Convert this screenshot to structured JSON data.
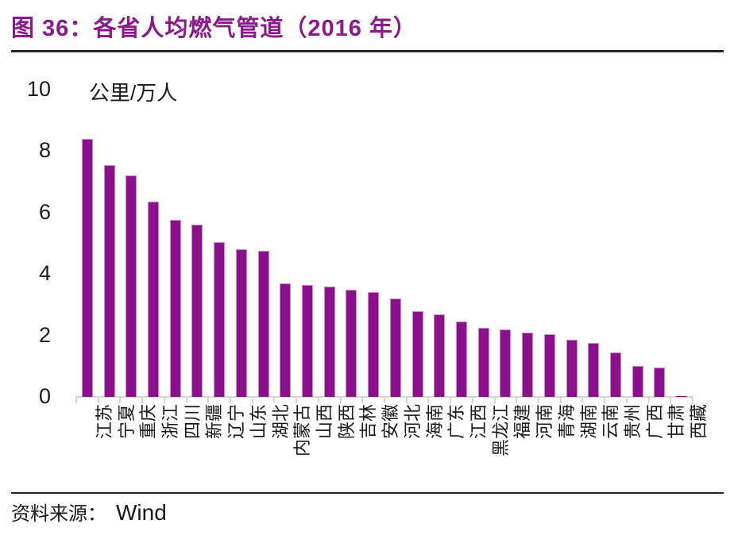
{
  "title": "图 36：各省人均燃气管道（2016 年）",
  "source_label": "资料来源：",
  "source_value": "Wind",
  "colors": {
    "bar_fill": "#8B108B",
    "bar_edge": "#D387CB",
    "title_text": "#8D188D",
    "axis_line": "#D6D6D6",
    "text": "#1A1A1A",
    "rule": "#262626"
  },
  "chart_data": {
    "type": "bar",
    "title": "图 36：各省人均燃气管道（2016 年）",
    "ylabel_unit": "公里/万人",
    "categories": [
      "江苏",
      "宁夏",
      "重庆",
      "浙江",
      "四川",
      "新疆",
      "辽宁",
      "山东",
      "湖北",
      "内蒙古",
      "山西",
      "陕西",
      "吉林",
      "安徽",
      "河北",
      "海南",
      "广东",
      "江西",
      "黑龙江",
      "福建",
      "河南",
      "青海",
      "湖南",
      "云南",
      "贵州",
      "广西",
      "甘肃",
      "西藏"
    ],
    "values": [
      8.4,
      7.55,
      7.2,
      6.35,
      5.75,
      5.6,
      5.05,
      4.8,
      4.75,
      3.7,
      3.65,
      3.6,
      3.5,
      3.4,
      3.2,
      2.8,
      2.7,
      2.45,
      2.25,
      2.2,
      2.1,
      2.05,
      1.85,
      1.75,
      1.45,
      1.0,
      0.95,
      0.02
    ],
    "ylim": [
      0,
      10
    ],
    "yticks": [
      0,
      2,
      4,
      6,
      8,
      10
    ],
    "grid": false,
    "legend": false,
    "xlabel_rotation_deg": -90,
    "source": "Wind"
  }
}
